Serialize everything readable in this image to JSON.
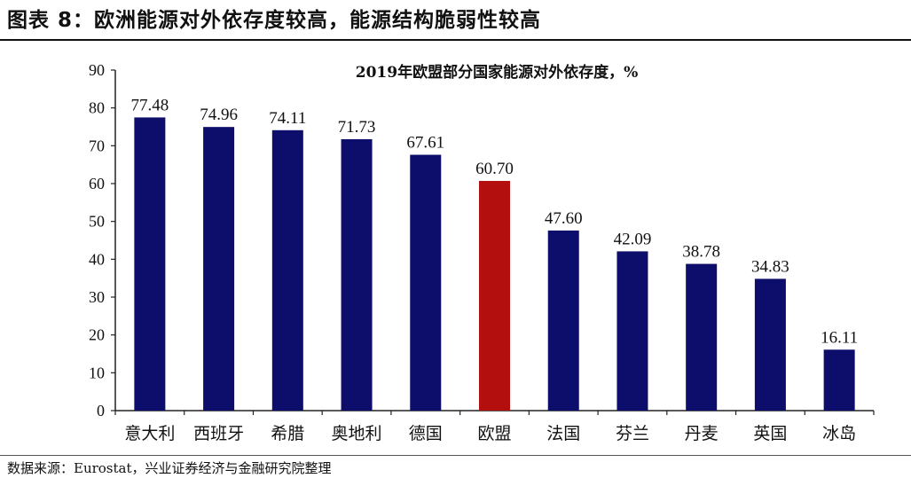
{
  "figure": {
    "title": "图表 8：欧洲能源对外依存度较高，能源结构脆弱性较高",
    "source": "数据来源：Eurostat，兴业证券经济与金融研究院整理"
  },
  "chart_data": {
    "type": "bar",
    "title": "2019年欧盟部分国家能源对外依存度，%",
    "xlabel": "",
    "ylabel": "",
    "ylim": [
      0,
      90
    ],
    "yticks": [
      0,
      10,
      20,
      30,
      40,
      50,
      60,
      70,
      80,
      90
    ],
    "grid": false,
    "categories": [
      "意大利",
      "西班牙",
      "希腊",
      "奥地利",
      "德国",
      "欧盟",
      "法国",
      "芬兰",
      "丹麦",
      "英国",
      "冰岛"
    ],
    "values": [
      77.48,
      74.96,
      74.11,
      71.73,
      67.61,
      60.7,
      47.6,
      42.09,
      38.78,
      34.83,
      16.11
    ],
    "value_labels": [
      "77.48",
      "74.96",
      "74.11",
      "71.73",
      "67.61",
      "60.70",
      "47.60",
      "42.09",
      "38.78",
      "34.83",
      "16.11"
    ],
    "colors": [
      "#0d0d6b",
      "#0d0d6b",
      "#0d0d6b",
      "#0d0d6b",
      "#0d0d6b",
      "#b40f0f",
      "#0d0d6b",
      "#0d0d6b",
      "#0d0d6b",
      "#0d0d6b",
      "#0d0d6b"
    ]
  }
}
